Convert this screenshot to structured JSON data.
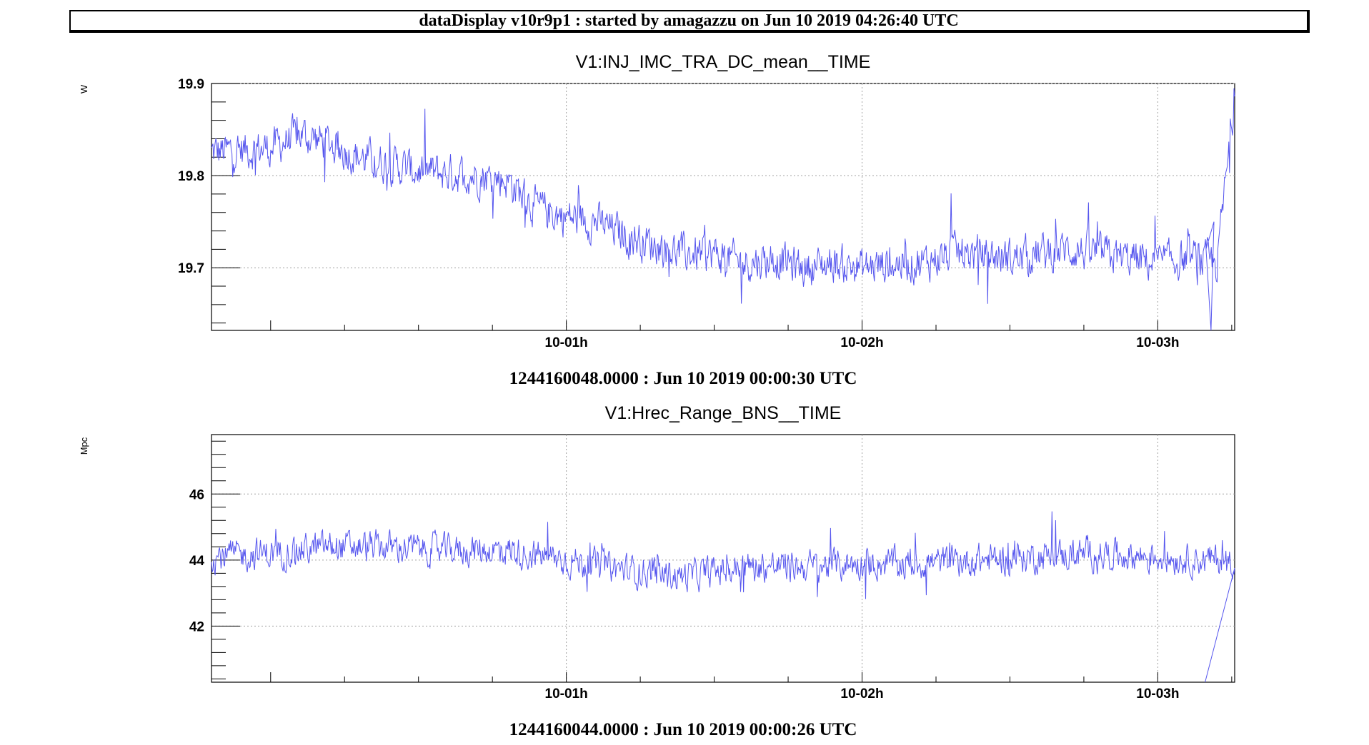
{
  "header": {
    "title": "dataDisplay v10r9p1 : started by amagazzu on Jun 10 2019 04:26:40 UTC"
  },
  "colors": {
    "line": "#5555ee",
    "grid": "#a0a0a0",
    "axis": "#000000"
  },
  "chart_data": [
    {
      "type": "line",
      "title": "V1:INJ_IMC_TRA_DC_mean__TIME",
      "ylabel": "W",
      "xlabel": "1244160048.0000 : Jun 10 2019 00:00:30 UTC",
      "xlim": [
        -0.2,
        3.26
      ],
      "ylim": [
        19.632,
        19.9
      ],
      "x_ticks": [
        {
          "x": 1,
          "label": "10-01h"
        },
        {
          "x": 2,
          "label": "10-02h"
        },
        {
          "x": 3,
          "label": "10-03h"
        }
      ],
      "y_ticks": [
        {
          "y": 19.7,
          "label": "19.7"
        },
        {
          "y": 19.8,
          "label": "19.8"
        },
        {
          "y": 19.9,
          "label": "19.9"
        }
      ],
      "grid": true,
      "series": [
        {
          "x": [
            -0.2,
            0.0,
            0.1,
            0.2,
            0.3,
            0.5,
            0.7,
            0.8,
            0.9,
            1.0,
            1.1,
            1.2,
            1.3,
            1.4,
            1.5,
            1.6,
            1.7,
            1.8,
            1.9,
            2.0,
            2.1,
            2.2,
            2.3,
            2.4,
            2.5,
            2.6,
            2.7,
            2.8,
            2.9,
            3.0,
            3.1,
            3.2,
            3.26
          ],
          "y": [
            19.825,
            19.83,
            19.845,
            19.835,
            19.82,
            19.805,
            19.8,
            19.795,
            19.765,
            19.755,
            19.75,
            19.735,
            19.725,
            19.715,
            19.715,
            19.705,
            19.71,
            19.7,
            19.705,
            19.7,
            19.705,
            19.705,
            19.715,
            19.715,
            19.71,
            19.715,
            19.72,
            19.715,
            19.71,
            19.705,
            19.71,
            19.705,
            19.885
          ],
          "noise": 0.02
        }
      ]
    },
    {
      "type": "line",
      "title": "V1:Hrec_Range_BNS__TIME",
      "ylabel": "Mpc",
      "xlabel": "1244160044.0000 : Jun 10 2019 00:00:26 UTC",
      "xlim": [
        -0.2,
        3.26
      ],
      "ylim": [
        40.3,
        47.8
      ],
      "x_ticks": [
        {
          "x": 1,
          "label": "10-01h"
        },
        {
          "x": 2,
          "label": "10-02h"
        },
        {
          "x": 3,
          "label": "10-03h"
        }
      ],
      "y_ticks": [
        {
          "y": 42,
          "label": "42"
        },
        {
          "y": 44,
          "label": "44"
        },
        {
          "y": 46,
          "label": "46"
        }
      ],
      "grid": true,
      "series": [
        {
          "x": [
            -0.2,
            0.0,
            0.2,
            0.4,
            0.6,
            0.8,
            1.0,
            1.2,
            1.4,
            1.6,
            1.8,
            2.0,
            2.2,
            2.4,
            2.6,
            2.8,
            3.0,
            3.15,
            3.26
          ],
          "y": [
            44.1,
            44.2,
            44.4,
            44.4,
            44.3,
            44.3,
            44.0,
            43.7,
            43.5,
            43.8,
            43.8,
            43.9,
            43.9,
            44.0,
            44.1,
            44.2,
            44.1,
            44.0,
            44.0
          ],
          "noise": 0.45
        }
      ]
    }
  ]
}
